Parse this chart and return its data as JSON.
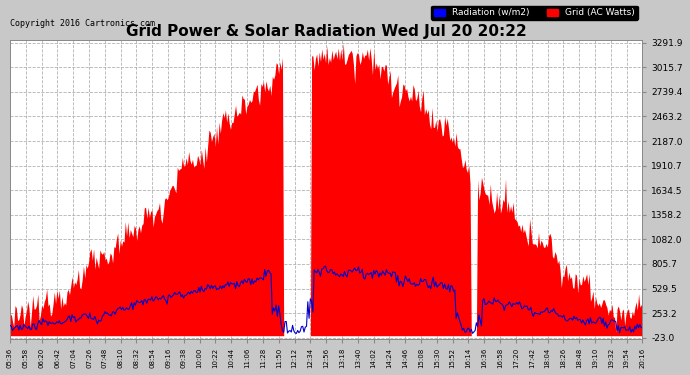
{
  "title": "Grid Power & Solar Radiation Wed Jul 20 20:22",
  "copyright": "Copyright 2016 Cartronics.com",
  "legend_radiation": "Radiation (w/m2)",
  "legend_grid": "Grid (AC Watts)",
  "yticks": [
    -23.0,
    253.2,
    529.5,
    805.7,
    1082.0,
    1358.2,
    1634.5,
    1910.7,
    2187.0,
    2463.2,
    2739.4,
    3015.7,
    3291.9
  ],
  "xtick_labels": [
    "05:36",
    "05:58",
    "06:20",
    "06:42",
    "07:04",
    "07:26",
    "07:48",
    "08:10",
    "08:32",
    "08:54",
    "09:16",
    "09:38",
    "10:00",
    "10:22",
    "10:44",
    "11:06",
    "11:28",
    "11:50",
    "12:12",
    "12:34",
    "12:56",
    "13:18",
    "13:40",
    "14:02",
    "14:24",
    "14:46",
    "15:08",
    "15:30",
    "15:52",
    "16:14",
    "16:36",
    "16:58",
    "17:20",
    "17:42",
    "18:04",
    "18:26",
    "18:48",
    "19:10",
    "19:32",
    "19:54",
    "20:16"
  ],
  "plot_bg_color": "#ffffff",
  "grid_color": "#aaaaaa",
  "radiation_color": "#0000cc",
  "grid_ac_color": "#ff0000",
  "title_color": "#000000",
  "fig_bg_color": "#c8c8c8",
  "ymin": -23.0,
  "ymax": 3291.9
}
